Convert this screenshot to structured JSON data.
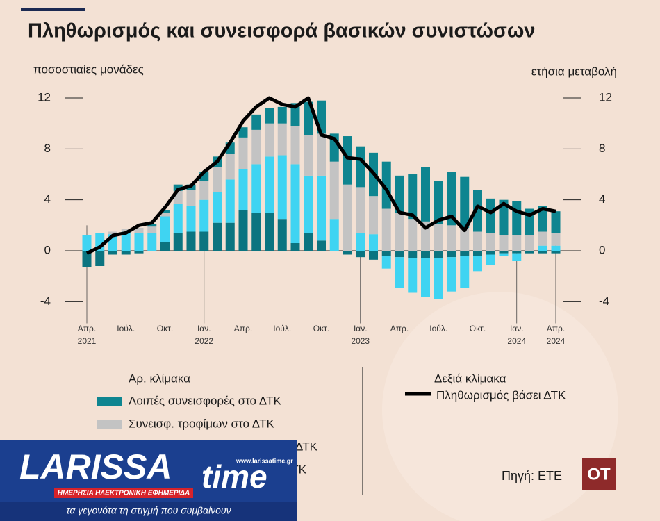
{
  "chart_data": {
    "type": "stacked_bar_line",
    "title": "Πληθωρισμός και συνεισφορά βασικών συνιστώσων",
    "y_axis_label": "ποσοστιαίες μονάδες",
    "y2_axis_label": "ετήσια μεταβολή",
    "legend_left_title": "Αρ. κλίμακα",
    "legend_right_title": "Δεξιά κλίμακα",
    "categories": [
      "Απρ. 2021",
      null,
      null,
      "Ιούλ.",
      null,
      null,
      "Οκτ.",
      null,
      null,
      "Ιαν. 2022",
      null,
      null,
      "Απρ.",
      null,
      null,
      "Ιούλ.",
      null,
      null,
      "Οκτ.",
      null,
      null,
      "Ιαν. 2023",
      null,
      null,
      "Απρ.",
      null,
      null,
      "Ιούλ.",
      null,
      null,
      "Οκτ.",
      null,
      null,
      "Ιαν. 2024",
      null,
      null,
      "Απρ. 2024"
    ],
    "ylim": [
      -5,
      13.5
    ],
    "yticks": [
      -4,
      0,
      4,
      8,
      12
    ],
    "y2lim": [
      -5,
      13.5
    ],
    "y2ticks": [
      -4,
      0,
      4,
      8,
      12
    ],
    "series": [
      {
        "name": "ΤΚ",
        "color": "#0b7480",
        "values": [
          -1.3,
          -1.2,
          -0.3,
          -0.3,
          -0.2,
          0,
          0.7,
          1.4,
          1.5,
          1.5,
          2.2,
          2.2,
          3.2,
          3.0,
          3.0,
          2.5,
          0.6,
          1.4,
          0.8,
          0,
          -0.3,
          -0.5,
          -0.7,
          -0.4,
          -0.5,
          -0.6,
          -0.6,
          -0.6,
          -0.5,
          -0.4,
          -0.4,
          -0.3,
          -0.2,
          -0.2,
          -0.2,
          -0.2,
          -0.2
        ]
      },
      {
        "name": "ΔΤΚ",
        "color": "#3fd4f2",
        "values": [
          1.2,
          1.4,
          1.3,
          1.5,
          1.4,
          1.4,
          2.0,
          2.3,
          2.0,
          2.5,
          2.4,
          3.4,
          3.2,
          3.8,
          4.4,
          5.0,
          6.2,
          4.5,
          5.1,
          2.5,
          0,
          1.4,
          1.3,
          -1.0,
          -2.4,
          -2.7,
          -3.0,
          -3.2,
          -2.7,
          -2.5,
          -1.2,
          -0.8,
          -0.2,
          -0.6,
          0,
          0.4,
          0.4
        ]
      },
      {
        "name": "Συνεισφ. τροφίμων στο ΔΤΚ",
        "color": "#c3c3c3",
        "values": [
          0,
          0,
          0.2,
          0.2,
          0.4,
          0.5,
          0.3,
          1.0,
          1.3,
          1.5,
          2.0,
          2.0,
          2.5,
          2.7,
          2.6,
          2.5,
          3.0,
          3.2,
          3.3,
          4.5,
          5.2,
          3.6,
          3.0,
          3.3,
          3.0,
          2.5,
          2.3,
          2.1,
          2.0,
          1.8,
          1.5,
          1.4,
          1.2,
          1.2,
          1.2,
          1.1,
          1.0
        ]
      },
      {
        "name": "Λοιπές συνεισφορές στο ΔΤΚ",
        "color": "#0e8590",
        "values": [
          0,
          0,
          0,
          0,
          0,
          0.2,
          0.2,
          0.5,
          0.4,
          0.7,
          0.8,
          0.9,
          0.8,
          1.2,
          1.2,
          1.3,
          1.8,
          2.6,
          2.6,
          2.2,
          3.8,
          3.2,
          3.4,
          3.7,
          2.9,
          3.5,
          4.3,
          3.4,
          4.2,
          4.0,
          3.3,
          2.7,
          2.8,
          2.7,
          2.1,
          2.0,
          1.7
        ]
      },
      {
        "name": "Πληθωρισμός βάσει ΔΤΚ",
        "color": "#000000",
        "kind": "line",
        "axis": "y2",
        "values": [
          -0.2,
          0.3,
          1.2,
          1.4,
          2.0,
          2.2,
          3.4,
          4.8,
          5.1,
          6.2,
          7.0,
          8.5,
          10.2,
          11.3,
          12.0,
          11.5,
          11.3,
          12.0,
          9.1,
          8.8,
          7.3,
          7.2,
          6.1,
          4.8,
          3.0,
          2.8,
          1.8,
          2.4,
          2.7,
          1.6,
          3.5,
          3.0,
          3.7,
          3.1,
          2.8,
          3.3,
          3.1
        ]
      }
    ],
    "source": "Πηγή: ΕΤΕ",
    "brand_logo": "OT"
  },
  "overlay_logo": {
    "name_part1": "LARISSA",
    "name_part2": "time",
    "url": "www.larissatime.gr",
    "tagline": "ΗΜΕΡΗΣΙΑ ΗΛΕΚΤΡΟΝΙΚΗ ΕΦΗΜΕΡΙΔΑ",
    "slogan": "τα γεγονότα τη στιγμή που συμβαίνουν"
  }
}
